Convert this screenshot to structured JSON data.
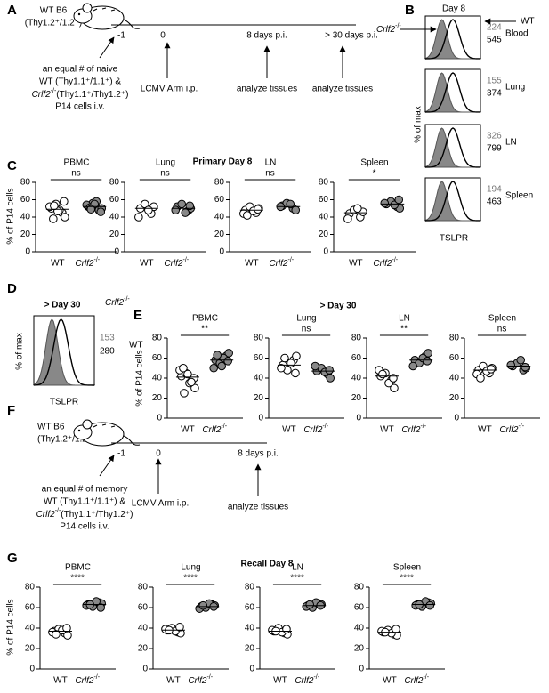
{
  "gene": "Crlf2",
  "gene_sup": "-/-",
  "wt": "WT",
  "panel_a": {
    "label": "A",
    "host": [
      "WT B6",
      "(Thy1.2⁺/1.2⁺)"
    ],
    "timeline": [
      "-1",
      "0",
      "8 days p.i.",
      "> 30 days p.i."
    ],
    "transfer": [
      "an equal # of naive",
      "WT (Thy1.1⁺/1.1⁺) &",
      "(Thy1.1⁺/Thy1.2⁺)",
      "P14 cells i.v."
    ],
    "infection": "LCMV Arm i.p.",
    "analysis": [
      "analyze tissues",
      "analyze tissues"
    ]
  },
  "panel_b": {
    "label": "B",
    "title": "Day 8",
    "y_label": "% of max",
    "x_label": "TSLPR",
    "histograms": [
      {
        "tissue": "Blood",
        "ko_mfi": 224,
        "wt_mfi": 545
      },
      {
        "tissue": "Lung",
        "ko_mfi": 155,
        "wt_mfi": 374
      },
      {
        "tissue": "LN",
        "ko_mfi": 326,
        "wt_mfi": 799
      },
      {
        "tissue": "Spleen",
        "ko_mfi": 194,
        "wt_mfi": 463
      }
    ]
  },
  "panel_c": {
    "label": "C",
    "title": "Primary Day 8",
    "y_label": "% of P14 cells",
    "ylim": [
      0,
      80
    ],
    "yticks": [
      0,
      20,
      40,
      60,
      80
    ],
    "plots": [
      {
        "name": "PBMC",
        "significance": "ns",
        "wt": {
          "values": [
            50,
            45,
            55,
            40,
            52,
            48,
            58,
            38,
            47,
            53
          ],
          "mean": 49
        },
        "ko": {
          "values": [
            52,
            48,
            56,
            50,
            54,
            58,
            46,
            51,
            55,
            49
          ],
          "mean": 52
        }
      },
      {
        "name": "Lung",
        "significance": "ns",
        "wt": {
          "values": [
            50,
            44,
            55,
            52,
            40,
            48
          ],
          "mean": 50
        },
        "ko": {
          "values": [
            52,
            47,
            55,
            50,
            48,
            45,
            53
          ],
          "mean": 50
        }
      },
      {
        "name": "LN",
        "significance": "ns",
        "wt": {
          "values": [
            48,
            45,
            52,
            50,
            44,
            47,
            49,
            42
          ],
          "mean": 48
        },
        "ko": {
          "values": [
            53,
            50,
            56,
            48,
            52,
            55
          ],
          "mean": 52
        }
      },
      {
        "name": "Spleen",
        "significance": "*",
        "wt": {
          "values": [
            44,
            40,
            48,
            46,
            38,
            50
          ],
          "mean": 45
        },
        "ko": {
          "values": [
            55,
            52,
            58,
            50,
            56,
            54,
            60
          ],
          "mean": 55
        }
      }
    ]
  },
  "panel_d": {
    "label": "D",
    "title": "> Day 30",
    "y_label": "% of max",
    "x_label": "TSLPR",
    "ko_mfi": 153,
    "wt_mfi": 280
  },
  "panel_e": {
    "label": "E",
    "title": "> Day 30",
    "y_label": "% of P14 cells",
    "ylim": [
      0,
      80
    ],
    "yticks": [
      0,
      20,
      40,
      60,
      80
    ],
    "plots": [
      {
        "name": "PBMC",
        "significance": "**",
        "wt": {
          "values": [
            42,
            38,
            45,
            30,
            48,
            35,
            40,
            50,
            44,
            25,
            36
          ],
          "mean": 41
        },
        "ko": {
          "values": [
            58,
            62,
            55,
            65,
            50,
            60,
            57,
            63,
            52
          ],
          "mean": 58
        }
      },
      {
        "name": "Lung",
        "significance": "ns",
        "wt": {
          "values": [
            53,
            58,
            48,
            62,
            50,
            55,
            45,
            60
          ],
          "mean": 53
        },
        "ko": {
          "values": [
            47,
            44,
            50,
            40,
            52,
            46,
            48
          ],
          "mean": 47
        }
      },
      {
        "name": "LN",
        "significance": "**",
        "wt": {
          "values": [
            42,
            38,
            45,
            30,
            48,
            35,
            40,
            44
          ],
          "mean": 42
        },
        "ko": {
          "values": [
            58,
            62,
            55,
            65,
            52,
            60,
            57
          ],
          "mean": 58
        }
      },
      {
        "name": "Spleen",
        "significance": "ns",
        "wt": {
          "values": [
            48,
            45,
            52,
            50,
            44,
            47,
            49,
            40
          ],
          "mean": 48
        },
        "ko": {
          "values": [
            52,
            48,
            55,
            50,
            53,
            58,
            51
          ],
          "mean": 52
        }
      }
    ]
  },
  "panel_f": {
    "label": "F",
    "host": [
      "WT B6",
      "(Thy1.2⁺/1.2⁺)"
    ],
    "timeline": [
      "-1",
      "0",
      "8 days  p.i."
    ],
    "transfer": [
      "an equal # of memory",
      "WT (Thy1.1⁺/1.1⁺) &",
      "(Thy1.1⁺/Thy1.2⁺)",
      "P14 cells i.v."
    ],
    "infection": "LCMV Arm i.p.",
    "analysis": "analyze tissues"
  },
  "panel_g": {
    "label": "G",
    "title": "Recall Day 8",
    "y_label": "% of P14 cells",
    "ylim": [
      0,
      80
    ],
    "yticks": [
      0,
      20,
      40,
      60,
      80
    ],
    "plots": [
      {
        "name": "PBMC",
        "significance": "****",
        "wt": {
          "values": [
            37,
            35,
            39,
            33,
            36,
            38,
            40,
            34
          ],
          "mean": 37
        },
        "ko": {
          "values": [
            63,
            65,
            61,
            64,
            62,
            66,
            60,
            63
          ],
          "mean": 63
        }
      },
      {
        "name": "Lung",
        "significance": "****",
        "wt": {
          "values": [
            38,
            36,
            40,
            35,
            39,
            37,
            41,
            38
          ],
          "mean": 38
        },
        "ko": {
          "values": [
            61,
            63,
            60,
            62,
            59,
            64,
            61,
            62
          ],
          "mean": 61
        }
      },
      {
        "name": "LN",
        "significance": "****",
        "wt": {
          "values": [
            37,
            35,
            40,
            34,
            38,
            36,
            39,
            37
          ],
          "mean": 37
        },
        "ko": {
          "values": [
            62,
            64,
            60,
            63,
            61,
            65,
            62,
            63
          ],
          "mean": 62
        }
      },
      {
        "name": "Spleen",
        "significance": "****",
        "wt": {
          "values": [
            36,
            34,
            38,
            33,
            37,
            35,
            39,
            36
          ],
          "mean": 36
        },
        "ko": {
          "values": [
            63,
            65,
            61,
            64,
            62,
            66,
            62,
            63
          ],
          "mean": 63
        }
      }
    ]
  }
}
